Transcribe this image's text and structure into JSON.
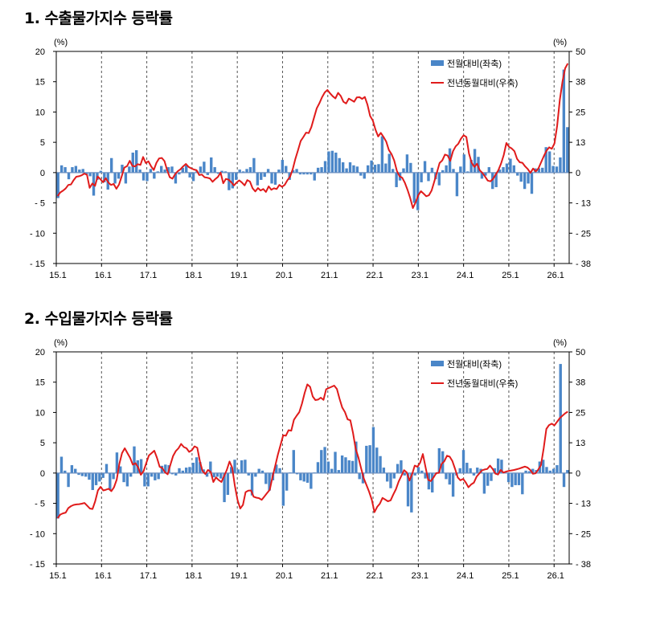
{
  "chart_data": [
    {
      "type": "bar",
      "title": "1. 수출물가지수 등락률",
      "left_unit": "(%)",
      "right_unit": "(%)",
      "x_ticks": [
        "15.1",
        "16.1",
        "17.1",
        "18.1",
        "19.1",
        "20.1",
        "21.1",
        "22.1",
        "23.1",
        "24.1",
        "25.1",
        "26.1"
      ],
      "y_left_ticks": [
        "20",
        "15",
        "10",
        "5",
        "0",
        "- 5",
        "- 10",
        "- 15"
      ],
      "y_right_ticks": [
        "50",
        "38",
        "25",
        "13",
        "0",
        "- 13",
        "- 25",
        "- 38"
      ],
      "ylim_left": [
        -15,
        20
      ],
      "ylim_right": [
        -38,
        50
      ],
      "grid": "vertical dashed at each January",
      "legend_position": "top-right",
      "colors": {
        "bar": "#4a86c8",
        "line": "#e01b1b"
      },
      "series": [
        {
          "name": "전월대비(좌축)",
          "kind": "bar",
          "axis": "left",
          "values": [
            -4.2,
            1.2,
            0.9,
            -1.1,
            0.9,
            1.1,
            0.5,
            0.6,
            -0.3,
            -0.6,
            -3.8,
            -1.2,
            0.3,
            -1.6,
            -2.8,
            2.4,
            -1.8,
            -1.0,
            1.3,
            -1.8,
            1.0,
            3.3,
            3.7,
            0.5,
            -1.3,
            -1.4,
            0.6,
            -1.0,
            0.2,
            1.1,
            0.5,
            0.9,
            1.0,
            -1.8,
            -0.3,
            0.8,
            1.2,
            -0.8,
            -1.4,
            0.3,
            1.0,
            1.8,
            -0.4,
            2.5,
            0.9,
            -0.2,
            0.3,
            0.2,
            -2.9,
            -2.6,
            -1.2,
            0.5,
            0.2,
            0.6,
            0.9,
            2.4,
            -2.1,
            -1.2,
            -0.7,
            0.6,
            -1.8,
            -2.0,
            0.5,
            2.1,
            1.1,
            -1.2,
            0.4,
            0.6,
            -0.3,
            -0.3,
            -0.3,
            -0.3,
            -1.3,
            0.8,
            0.9,
            1.9,
            3.5,
            3.6,
            3.3,
            2.4,
            1.7,
            0.7,
            1.7,
            1.2,
            1.0,
            -0.5,
            -1.0,
            1.2,
            2.0,
            1.3,
            1.4,
            6.0,
            1.5,
            3.1,
            0.6,
            -2.4,
            -1.3,
            0.7,
            3.0,
            1.6,
            -5.0,
            -6.2,
            -1.6,
            1.9,
            -1.4,
            0.8,
            -1.1,
            -2.1,
            0.4,
            1.2,
            4.0,
            0.6,
            -3.9,
            1.0,
            3.0,
            0.2,
            2.1,
            3.9,
            2.6,
            -1.0,
            -0.5,
            0.9,
            -2.7,
            -2.4,
            0.5,
            0.9,
            1.5,
            2.3,
            1.2,
            -0.5,
            -1.5,
            -2.7,
            -1.8,
            -3.5,
            0.7,
            0.7,
            0.8,
            4.2,
            3.5,
            1.1,
            1.0,
            2.5,
            17.0,
            7.5
          ]
        },
        {
          "name": "전년동월대비(우축)",
          "kind": "line",
          "axis": "right",
          "values": [
            -10.0,
            -8.5,
            -7.8,
            -6.9,
            -5.4,
            -5.2,
            -3.4,
            -2.0,
            -1.8,
            -1.4,
            -0.7,
            -1.2,
            -6.6,
            -4.8,
            -5.8,
            -1.9,
            -3.0,
            -4.3,
            -2.6,
            -4.4,
            -5.4,
            -5.0,
            -7.0,
            -5.2,
            -1.8,
            1.8,
            2.4,
            4.6,
            2.5,
            2.3,
            3.2,
            2.9,
            6.2,
            3.7,
            4.4,
            2.3,
            0.8,
            3.8,
            5.6,
            5.8,
            4.5,
            0.7,
            -2.2,
            -2.8,
            -0.9,
            0.3,
            1.1,
            2.3,
            3.3,
            2.1,
            1.5,
            1.0,
            0.7,
            -1.3,
            -1.1,
            -2.2,
            -2.4,
            -2.7,
            -4.1,
            -3.0,
            -2.1,
            -0.3,
            -4.7,
            -2.9,
            -3.2,
            -4.3,
            -5.6,
            -4.4,
            -3.5,
            -4.4,
            -5.6,
            -3.4,
            -4.0,
            -6.8,
            -8.1,
            -6.7,
            -7.7,
            -7.1,
            -8.3,
            -6.0,
            -7.4,
            -6.8,
            -7.1,
            -5.4,
            -6.2,
            -5.4,
            -3.5,
            -2.0,
            1.1,
            5.4,
            9.0,
            12.8,
            14.5,
            16.3,
            16.1,
            18.6,
            22.6,
            26.4,
            28.5,
            31.0,
            33.0,
            34.0,
            32.6,
            31.4,
            30.5,
            32.8,
            31.5,
            29.1,
            28.4,
            30.4,
            29.8,
            29.1,
            30.9,
            31.0,
            30.3,
            31.1,
            27.9,
            23.2,
            21.3,
            17.5,
            14.7,
            16.2,
            14.5,
            12.6,
            9.1,
            7.4,
            4.8,
            0.4,
            -1.8,
            -2.4,
            -4.5,
            -7.5,
            -10.9,
            -15.0,
            -12.7,
            -9.7,
            -8.0,
            -9.0,
            -10.1,
            -9.7,
            -7.7,
            -4.0,
            -0.2,
            3.7,
            4.8,
            7.2,
            6.8,
            4.6,
            8.6,
            10.6,
            11.7,
            13.8,
            15.2,
            14.5,
            7.6,
            3.8,
            2.1,
            3.4,
            0.7,
            -0.4,
            -1.9,
            -3.6,
            -3.9,
            -2.9,
            -1.1,
            0.7,
            3.5,
            7.0,
            12.0,
            10.4,
            9.7,
            8.6,
            5.4,
            4.0,
            3.8,
            2.3,
            1.2,
            -0.4,
            1.4,
            0.2,
            1.5,
            4.0,
            6.5,
            8.8,
            10.2,
            9.6,
            11.8,
            19.0,
            30.0,
            37.5,
            43.0,
            45.0
          ]
        }
      ]
    },
    {
      "type": "bar",
      "title": "2. 수입물가지수 등락률",
      "left_unit": "(%)",
      "right_unit": "(%)",
      "x_ticks": [
        "15.1",
        "16.1",
        "17.1",
        "18.1",
        "19.1",
        "20.1",
        "21.1",
        "22.1",
        "23.1",
        "24.1",
        "25.1",
        "26.1"
      ],
      "y_left_ticks": [
        "20",
        "15",
        "10",
        "5",
        "0",
        "- 5",
        "- 10",
        "- 15"
      ],
      "y_right_ticks": [
        "50",
        "38",
        "25",
        "13",
        "0",
        "- 13",
        "- 25",
        "- 38"
      ],
      "ylim_left": [
        -15,
        20
      ],
      "ylim_right": [
        -38,
        50
      ],
      "grid": "vertical dashed at each January",
      "legend_position": "top-right",
      "colors": {
        "bar": "#4a86c8",
        "line": "#e01b1b"
      },
      "series": [
        {
          "name": "전월대비(좌축)",
          "kind": "bar",
          "axis": "left",
          "values": [
            -7.5,
            2.7,
            0.4,
            -2.3,
            1.3,
            0.7,
            -0.3,
            -0.5,
            -0.6,
            -1.1,
            -2.8,
            -2.0,
            -1.4,
            -0.8,
            1.5,
            -2.8,
            -1.0,
            3.4,
            1.1,
            -1.5,
            -2.2,
            -0.6,
            4.4,
            2.1,
            2.3,
            -2.2,
            -2.2,
            -0.6,
            -1.2,
            -1.0,
            1.2,
            1.4,
            1.3,
            -0.2,
            -0.4,
            0.8,
            0.4,
            0.9,
            1.0,
            1.7,
            2.6,
            1.8,
            0.6,
            -0.6,
            1.9,
            -0.7,
            -0.6,
            -0.9,
            -4.8,
            -3.6,
            1.0,
            2.2,
            0.6,
            2.1,
            2.2,
            -0.4,
            -3.7,
            -0.6,
            0.7,
            0.4,
            -1.8,
            -2.9,
            -1.2,
            1.4,
            0.8,
            -5.4,
            -2.9,
            0.1,
            3.8,
            -0.2,
            -1.2,
            -1.4,
            -1.6,
            -2.6,
            0.1,
            1.8,
            3.8,
            4.3,
            1.9,
            0.7,
            3.5,
            0.5,
            2.9,
            2.6,
            2.1,
            2.0,
            5.2,
            -1.0,
            -1.7,
            4.5,
            4.6,
            7.6,
            4.2,
            2.8,
            0.9,
            -1.4,
            -2.5,
            -0.9,
            1.5,
            2.1,
            -0.4,
            -5.5,
            -6.5,
            -0.4,
            1.0,
            0.4,
            -0.9,
            -2.7,
            -3.2,
            -0.2,
            4.1,
            3.6,
            -1.0,
            -1.9,
            -3.9,
            -0.4,
            0.8,
            3.8,
            1.7,
            0.8,
            -0.4,
            0.9,
            0.7,
            -3.4,
            -2.1,
            -1.3,
            0.8,
            2.4,
            2.2,
            0.2,
            -1.5,
            -2.3,
            -2.0,
            -2.0,
            -3.5,
            0.4,
            0.3,
            0.7,
            0.5,
            1.9,
            2.2,
            1.0,
            0.4,
            0.7,
            1.3,
            18.0,
            -2.3,
            0.5
          ]
        },
        {
          "name": "전년동월대비(우축)",
          "kind": "line",
          "axis": "right",
          "values": [
            -19.0,
            -17.5,
            -17.0,
            -16.7,
            -14.8,
            -14.0,
            -13.5,
            -13.3,
            -13.2,
            -13.0,
            -12.7,
            -13.8,
            -15.0,
            -15.2,
            -12.0,
            -7.5,
            -6.0,
            -7.5,
            -7.2,
            -6.8,
            -7.8,
            -6.2,
            -3.0,
            3.6,
            8.0,
            10.0,
            8.0,
            6.0,
            3.2,
            3.8,
            2.0,
            -1.0,
            0.5,
            3.8,
            7.0,
            8.0,
            9.0,
            6.0,
            2.3,
            1.8,
            0.0,
            -0.8,
            3.2,
            6.8,
            8.8,
            10.0,
            11.8,
            10.5,
            10.0,
            8.5,
            9.2,
            10.8,
            10.2,
            4.5,
            0.5,
            -0.7,
            1.0,
            0.2,
            -4.0,
            -2.1,
            -3.2,
            -4.0,
            -1.5,
            1.0,
            4.5,
            2.0,
            -5.5,
            -11.5,
            -15.0,
            -13.5,
            -8.2,
            -7.6,
            -7.5,
            -10.1,
            -10.5,
            -10.7,
            -11.4,
            -10.0,
            -8.6,
            -7.2,
            -2.0,
            2.5,
            7.3,
            11.3,
            15.4,
            15.2,
            17.5,
            17.3,
            21.8,
            23.5,
            25.0,
            28.5,
            33.0,
            36.5,
            35.5,
            31.5,
            30.0,
            30.2,
            31.0,
            30.1,
            34.5,
            35.0,
            35.5,
            36.0,
            34.6,
            30.5,
            26.9,
            25.0,
            22.0,
            21.6,
            16.4,
            9.8,
            6.2,
            1.8,
            -2.5,
            -5.2,
            -8.0,
            -11.4,
            -16.5,
            -14.3,
            -13.0,
            -10.6,
            -11.3,
            -12.0,
            -11.6,
            -9.2,
            -7.0,
            -3.8,
            -1.5,
            0.9,
            0.0,
            -3.4,
            -0.8,
            2.8,
            2.3,
            4.0,
            7.6,
            2.2,
            -3.1,
            -3.6,
            -2.1,
            -0.3,
            -0.2,
            3.5,
            4.6,
            6.9,
            6.5,
            4.7,
            1.5,
            -2.1,
            -3.3,
            -2.7,
            -4.2,
            -6.2,
            -5.0,
            -4.3,
            -1.8,
            -0.5,
            0.8,
            1.2,
            1.4,
            2.8,
            1.4,
            -0.5,
            -0.9,
            1.0,
            -0.1,
            0.3,
            0.6,
            0.8,
            1.0,
            1.3,
            1.6,
            2.0,
            2.4,
            2.0,
            1.0,
            -0.6,
            -0.4,
            1.2,
            3.0,
            10.0,
            18.0,
            19.6,
            20.2,
            19.5,
            21.0,
            22.5,
            23.5,
            24.5,
            25.2
          ]
        }
      ]
    }
  ]
}
